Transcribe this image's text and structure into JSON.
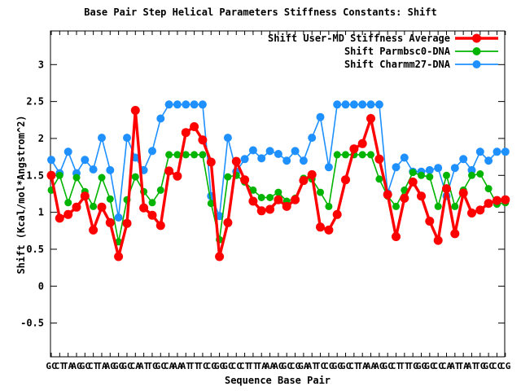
{
  "title": "Base Pair Step Helical Parameters Stiffness Constants: Shift",
  "xlabel": "Sequence Base Pair",
  "ylabel": "Shift (Kcal/mol*Angstrom^2)",
  "colors": {
    "red": "#ff0000",
    "green": "#00b400",
    "blue": "#1e90ff",
    "axis": "#000000"
  },
  "legend": [
    {
      "label": "Shift User-MD Stiffness Average",
      "color": "#ff0000"
    },
    {
      "label": "Shift Parmbsc0-DNA",
      "color": "#00b400"
    },
    {
      "label": "Shift Charmm27-DNA",
      "color": "#1e90ff"
    }
  ],
  "chart_data": {
    "type": "line",
    "title": "Base Pair Step Helical Parameters Stiffness Constants: Shift",
    "xlabel": "Sequence Base Pair",
    "ylabel": "Shift (Kcal/mol*Angstrom^2)",
    "ylim": [
      -0.955,
      3.455
    ],
    "yticks": [
      3,
      2.5,
      2,
      1.5,
      1,
      0.5,
      0,
      -0.5
    ],
    "grid": false,
    "legend_position": "top-right-inside",
    "x_tick_labels": [
      "GC",
      "CT",
      "TA",
      "AG",
      "GC",
      "CT",
      "TA",
      "AG",
      "GG",
      "GC",
      "CA",
      "AT",
      "TG",
      "GC",
      "CA",
      "AA",
      "AT",
      "TT",
      "TC",
      "CG",
      "GG",
      "GC",
      "CC",
      "CT",
      "TT",
      "TA",
      "AA",
      "AG",
      "GC",
      "CG",
      "GA",
      "AT",
      "TC",
      "CG",
      "GG",
      "GC",
      "CT",
      "TA",
      "AA",
      "AG",
      "GC",
      "CT",
      "TT",
      "TG",
      "GG",
      "GC",
      "CC",
      "CA",
      "AT",
      "TA",
      "AT",
      "TG",
      "GC",
      "CC",
      "CG"
    ],
    "series": [
      {
        "name": "Shift Charmm27-DNA",
        "color": "#1e90ff",
        "marker": "circle",
        "marker_radius": 5,
        "line_width": 1.6,
        "values": [
          1.71,
          1.53,
          1.82,
          1.53,
          1.71,
          1.58,
          2.01,
          1.57,
          0.93,
          2.01,
          1.74,
          1.57,
          1.83,
          2.27,
          2.46,
          2.46,
          2.46,
          2.46,
          2.46,
          1.22,
          0.95,
          2.01,
          1.55,
          1.72,
          1.84,
          1.73,
          1.83,
          1.79,
          1.7,
          1.83,
          1.7,
          2.01,
          2.29,
          1.61,
          2.46,
          2.46,
          2.46,
          2.46,
          2.46,
          2.46,
          1.26,
          1.61,
          1.74,
          1.55,
          1.55,
          1.57,
          1.6,
          1.22,
          1.6,
          1.72,
          1.57,
          1.82,
          1.7,
          1.82,
          1.82
        ]
      },
      {
        "name": "Shift Parmbsc0-DNA",
        "color": "#00b400",
        "marker": "circle",
        "marker_radius": 4.5,
        "line_width": 1.6,
        "values": [
          1.3,
          1.5,
          1.13,
          1.47,
          1.28,
          1.08,
          1.47,
          1.18,
          0.6,
          1.17,
          1.48,
          1.28,
          1.13,
          1.3,
          1.78,
          1.78,
          1.78,
          1.78,
          1.78,
          1.12,
          0.63,
          1.48,
          1.5,
          1.41,
          1.3,
          1.2,
          1.2,
          1.27,
          1.15,
          1.19,
          1.46,
          1.45,
          1.27,
          1.08,
          1.78,
          1.78,
          1.78,
          1.78,
          1.78,
          1.45,
          1.22,
          1.08,
          1.3,
          1.54,
          1.5,
          1.48,
          1.08,
          1.5,
          1.08,
          1.3,
          1.5,
          1.52,
          1.32,
          1.11,
          1.13
        ]
      },
      {
        "name": "Shift User-MD Stiffness Average",
        "color": "#ff0000",
        "marker": "circle",
        "marker_radius": 5.5,
        "line_width": 3.4,
        "values": [
          1.5,
          0.92,
          0.97,
          1.07,
          1.22,
          0.76,
          1.07,
          0.86,
          0.4,
          0.85,
          2.38,
          1.06,
          0.96,
          0.82,
          1.56,
          1.49,
          2.08,
          2.16,
          1.98,
          1.68,
          0.4,
          0.86,
          1.69,
          1.44,
          1.15,
          1.02,
          1.04,
          1.17,
          1.08,
          1.17,
          1.43,
          1.51,
          0.8,
          0.76,
          0.97,
          1.44,
          1.86,
          1.93,
          2.27,
          1.72,
          1.24,
          0.67,
          1.19,
          1.41,
          1.22,
          0.88,
          0.62,
          1.32,
          0.71,
          1.26,
          0.99,
          1.03,
          1.12,
          1.16,
          1.17
        ]
      }
    ]
  }
}
